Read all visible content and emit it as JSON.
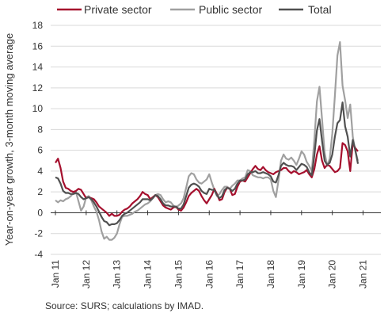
{
  "colors": {
    "private": "#a50f2d",
    "public": "#a0a0a0",
    "total": "#505050",
    "grid": "#d9d9d9",
    "axis": "#333333"
  },
  "chart_data": {
    "type": "line",
    "ylabel": "Year-on-year growth, 3-month moving average",
    "xlabel": "",
    "source": "Source: SURS; calculations by IMAD.",
    "ylim": [
      -4,
      18
    ],
    "yticks": [
      -4,
      -2,
      0,
      2,
      4,
      6,
      8,
      10,
      12,
      14,
      16,
      18
    ],
    "xticks": [
      "Jan 11",
      "Jan 12",
      "Jan 13",
      "Jan 14",
      "Jan 15",
      "Jan 16",
      "Jan 17",
      "Jan 18",
      "Jan 19",
      "Jan 20",
      "Jan 21"
    ],
    "grid": "horizontal",
    "legend_position": "top",
    "x_start": "Jan 11",
    "x_end": "Sep 21",
    "series": [
      {
        "name": "Private sector",
        "color_key": "private",
        "values": [
          4.8,
          5.2,
          4.3,
          3.0,
          2.4,
          2.3,
          2.1,
          2.0,
          2.1,
          2.3,
          2.2,
          1.8,
          1.4,
          1.5,
          1.4,
          1.3,
          1.0,
          0.6,
          0.4,
          0.2,
          0.0,
          -0.3,
          -0.1,
          -0.3,
          -0.3,
          -0.2,
          0.1,
          0.3,
          0.4,
          0.6,
          0.9,
          1.1,
          1.3,
          1.6,
          2.0,
          1.8,
          1.7,
          1.3,
          1.5,
          1.7,
          1.5,
          1.1,
          0.7,
          0.5,
          0.4,
          0.3,
          0.5,
          0.6,
          0.3,
          0.2,
          0.5,
          1.0,
          1.6,
          1.9,
          2.1,
          2.3,
          2.1,
          1.6,
          1.2,
          0.9,
          1.3,
          1.7,
          2.3,
          1.8,
          1.2,
          1.3,
          2.0,
          2.4,
          2.3,
          1.7,
          1.8,
          2.5,
          3.0,
          3.1,
          3.0,
          3.4,
          3.8,
          4.2,
          4.5,
          4.2,
          4.1,
          4.4,
          4.1,
          3.9,
          3.8,
          3.7,
          3.9,
          4.0,
          4.1,
          4.3,
          4.3,
          4.0,
          3.8,
          4.0,
          3.9,
          3.7,
          3.8,
          3.9,
          4.1,
          3.7,
          3.4,
          4.2,
          5.6,
          6.4,
          5.0,
          4.3,
          4.6,
          4.5,
          4.2,
          3.9,
          4.0,
          4.3,
          6.7,
          6.5,
          5.9,
          4.0,
          6.7,
          6.2,
          5.9
        ]
      },
      {
        "name": "Public sector",
        "color_key": "public",
        "values": [
          1.2,
          1.0,
          1.2,
          1.1,
          1.3,
          1.4,
          1.6,
          1.9,
          2.0,
          1.1,
          0.2,
          0.6,
          1.5,
          1.6,
          1.2,
          0.6,
          0.1,
          -0.7,
          -1.8,
          -2.5,
          -2.3,
          -2.6,
          -2.6,
          -2.4,
          -2.0,
          -1.1,
          -0.4,
          -0.3,
          -0.3,
          -0.2,
          -0.1,
          0.1,
          0.2,
          0.4,
          0.6,
          0.8,
          0.9,
          1.1,
          1.4,
          1.7,
          1.8,
          1.7,
          1.3,
          1.0,
          1.1,
          1.0,
          0.7,
          0.5,
          0.7,
          0.9,
          1.4,
          2.4,
          3.5,
          3.8,
          3.7,
          3.2,
          2.9,
          2.8,
          3.0,
          3.2,
          3.7,
          2.9,
          2.2,
          1.6,
          1.8,
          2.2,
          2.5,
          2.5,
          2.3,
          2.6,
          2.8,
          3.1,
          3.1,
          3.3,
          3.4,
          4.1,
          4.0,
          3.6,
          3.5,
          3.4,
          3.4,
          3.3,
          3.4,
          3.4,
          3.2,
          2.1,
          1.5,
          3.1,
          5.0,
          5.6,
          5.2,
          5.1,
          5.3,
          5.0,
          4.6,
          5.2,
          5.9,
          5.6,
          4.9,
          4.5,
          4.0,
          7.0,
          10.7,
          12.1,
          9.0,
          5.8,
          4.5,
          5.2,
          7.6,
          11.2,
          15.1,
          16.4,
          12.2,
          10.8,
          9.1,
          10.4,
          7.3,
          5.9,
          5.0
        ]
      },
      {
        "name": "Total",
        "color_key": "total",
        "values": [
          3.4,
          3.3,
          2.8,
          2.1,
          1.9,
          1.9,
          1.8,
          1.8,
          1.9,
          1.8,
          1.5,
          1.3,
          1.4,
          1.5,
          1.3,
          1.0,
          0.6,
          0.1,
          -0.4,
          -0.8,
          -0.9,
          -1.2,
          -1.1,
          -1.1,
          -1.0,
          -0.7,
          -0.3,
          -0.1,
          0.0,
          0.2,
          0.4,
          0.6,
          0.8,
          1.0,
          1.3,
          1.3,
          1.3,
          1.2,
          1.4,
          1.7,
          1.6,
          1.3,
          0.9,
          0.7,
          0.7,
          0.6,
          0.6,
          0.6,
          0.4,
          0.4,
          0.8,
          1.6,
          2.4,
          2.7,
          2.8,
          2.7,
          2.5,
          2.1,
          1.9,
          1.8,
          2.3,
          2.2,
          2.2,
          1.7,
          1.4,
          1.6,
          2.2,
          2.4,
          2.3,
          2.1,
          2.3,
          2.8,
          3.1,
          3.1,
          3.2,
          3.7,
          3.9,
          3.9,
          4.0,
          3.8,
          3.8,
          3.9,
          3.8,
          3.7,
          3.5,
          3.0,
          2.9,
          3.6,
          4.5,
          4.8,
          4.6,
          4.5,
          4.5,
          4.4,
          4.1,
          4.4,
          4.7,
          4.6,
          4.4,
          3.9,
          3.6,
          5.5,
          7.9,
          9.0,
          6.9,
          5.0,
          4.6,
          4.8,
          5.6,
          7.3,
          8.6,
          8.9,
          10.6,
          8.3,
          7.3,
          5.4,
          7.0,
          6.0,
          4.7
        ]
      }
    ]
  }
}
